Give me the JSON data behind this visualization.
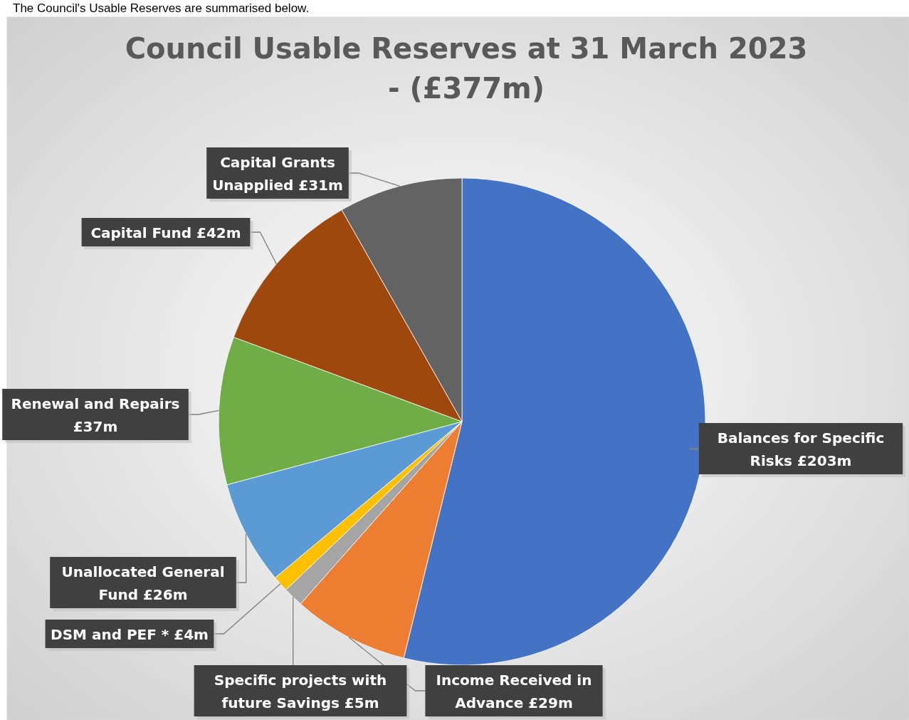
{
  "chart_data": {
    "type": "pie",
    "title": "Council Usable Reserves at 31 March 2023 - (£377m)",
    "annotations": [
      "The Council's Usable Reserves are summarised below."
    ],
    "categories": [
      "Balances for Specific Risks",
      "Income Received in Advance",
      "Specific projects with future Savings",
      "DSM and PEF *",
      "Unallocated General Fund",
      "Renewal and Repairs",
      "Capital Fund",
      "Capital Grants Unapplied"
    ],
    "values": [
      203,
      29,
      5,
      4,
      26,
      37,
      42,
      31
    ],
    "value_labels": [
      "£203m",
      "£29m",
      "£5m",
      "£4m",
      "£26m",
      "£37m",
      "£42m",
      "£31m"
    ],
    "colors": [
      "#4472c4",
      "#ed7d31",
      "#a5a5a5",
      "#ffc000",
      "#5b9bd5",
      "#70ad47",
      "#9e480e",
      "#636363"
    ]
  }
}
